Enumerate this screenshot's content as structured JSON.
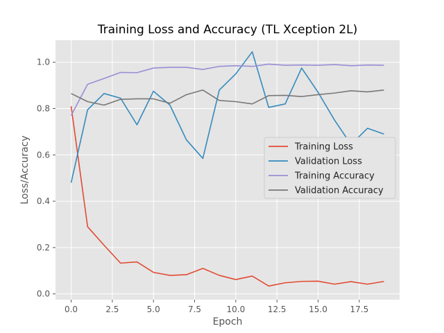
{
  "chart_data": {
    "type": "line",
    "title": "Training Loss and Accuracy (TL Xception 2L)",
    "xlabel": "Epoch",
    "ylabel": "Loss/Accuracy",
    "xlim": [
      -0.95,
      19.95
    ],
    "ylim": [
      -0.025,
      1.095
    ],
    "xticks": [
      0,
      2.5,
      5,
      7.5,
      10,
      12.5,
      15,
      17.5
    ],
    "xtick_labels": [
      "0.0",
      "2.5",
      "5.0",
      "7.5",
      "10.0",
      "12.5",
      "15.0",
      "17.5"
    ],
    "yticks": [
      0,
      0.2,
      0.4,
      0.6,
      0.8,
      1.0
    ],
    "ytick_labels": [
      "0.0",
      "0.2",
      "0.4",
      "0.6",
      "0.8",
      "1.0"
    ],
    "grid": true,
    "legend_position": "center-right",
    "x": [
      0,
      1,
      2,
      3,
      4,
      5,
      6,
      7,
      8,
      9,
      10,
      11,
      12,
      13,
      14,
      15,
      16,
      17,
      18,
      19
    ],
    "series": [
      {
        "name": "Training Loss",
        "color": "#e24a33",
        "values": [
          0.81,
          0.29,
          0.21,
          0.133,
          0.138,
          0.093,
          0.08,
          0.083,
          0.11,
          0.08,
          0.062,
          0.077,
          0.034,
          0.048,
          0.054,
          0.055,
          0.042,
          0.053,
          0.042,
          0.054
        ]
      },
      {
        "name": "Validation Loss",
        "color": "#348abd",
        "values": [
          0.48,
          0.795,
          0.865,
          0.845,
          0.73,
          0.875,
          0.815,
          0.665,
          0.585,
          0.88,
          0.95,
          1.045,
          0.805,
          0.82,
          0.975,
          0.87,
          0.75,
          0.645,
          0.715,
          0.69
        ]
      },
      {
        "name": "Training Accuracy",
        "color": "#988ed5",
        "values": [
          0.77,
          0.905,
          0.93,
          0.956,
          0.955,
          0.975,
          0.978,
          0.978,
          0.969,
          0.982,
          0.985,
          0.982,
          0.992,
          0.987,
          0.988,
          0.987,
          0.99,
          0.985,
          0.988,
          0.987
        ]
      },
      {
        "name": "Validation Accuracy",
        "color": "#777777",
        "values": [
          0.865,
          0.83,
          0.815,
          0.84,
          0.842,
          0.842,
          0.823,
          0.86,
          0.88,
          0.835,
          0.83,
          0.82,
          0.856,
          0.857,
          0.852,
          0.86,
          0.867,
          0.877,
          0.872,
          0.88
        ]
      }
    ]
  }
}
